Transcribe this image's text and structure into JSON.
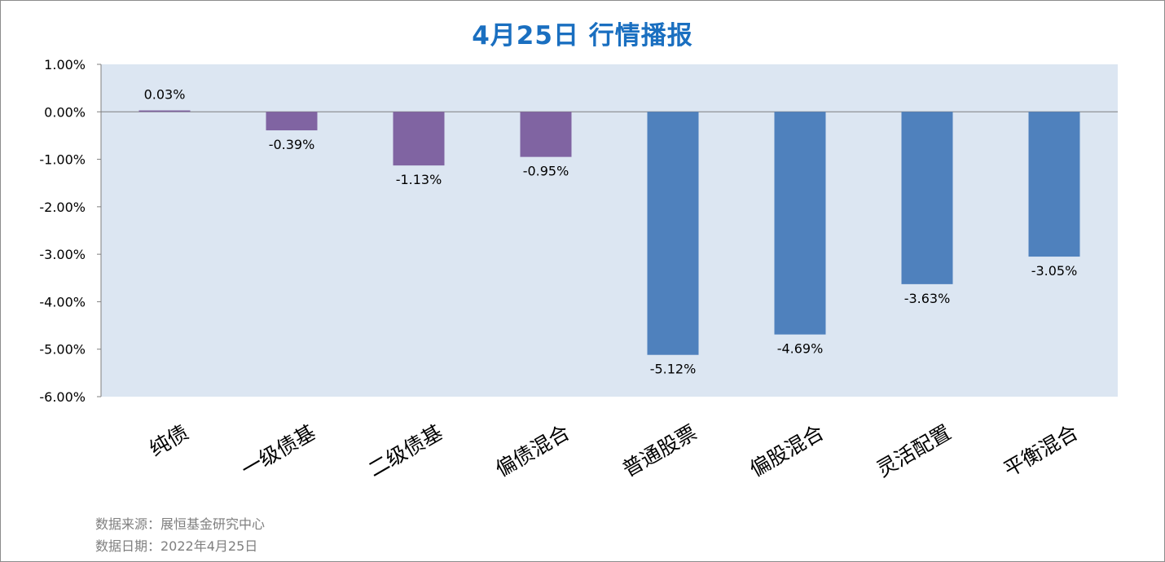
{
  "title": "4月25日   行情播报",
  "footer": {
    "source": "数据来源：展恒基金研究中心",
    "date": "数据日期：2022年4月25日"
  },
  "colors": {
    "plot_background": "#dce6f2",
    "bond_bar": "#8064a2",
    "equity_bar": "#4f81bd",
    "title": "#1a6fc0",
    "footer": "#7f7f7f"
  },
  "chart_data": {
    "type": "bar",
    "title": "4月25日   行情播报",
    "categories": [
      "纯债",
      "一级债基",
      "二级债基",
      "偏债混合",
      "普通股票",
      "偏股混合",
      "灵活配置",
      "平衡混合"
    ],
    "values": [
      0.03,
      -0.39,
      -1.13,
      -0.95,
      -5.12,
      -4.69,
      -3.63,
      -3.05
    ],
    "data_labels": [
      "0.03%",
      "-0.39%",
      "-1.13%",
      "-0.95%",
      "-5.12%",
      "-4.69%",
      "-3.63%",
      "-3.05%"
    ],
    "bar_colors": [
      "#8064a2",
      "#8064a2",
      "#8064a2",
      "#8064a2",
      "#4f81bd",
      "#4f81bd",
      "#4f81bd",
      "#4f81bd"
    ],
    "ylim": [
      -6,
      1
    ],
    "yticks": [
      1,
      0,
      -1,
      -2,
      -3,
      -4,
      -5,
      -6
    ],
    "ytick_labels": [
      "1.00%",
      "0.00%",
      "-1.00%",
      "-2.00%",
      "-3.00%",
      "-4.00%",
      "-5.00%",
      "-6.00%"
    ],
    "xlabel": "",
    "ylabel": "",
    "grid": false,
    "legend": "none"
  }
}
